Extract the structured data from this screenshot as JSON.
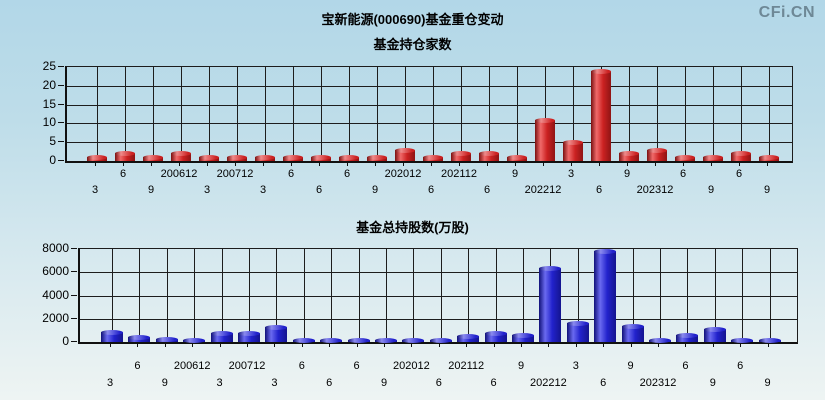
{
  "header": {
    "title": "宝新能源(000690)基金重仓变动",
    "logo": "CFi.CN"
  },
  "colors": {
    "background_top": "#b2d7e8",
    "background_bottom": "#eef4f3",
    "gridline": "#1d1d1d",
    "logo_gray": "#6e8896",
    "red_bar_main": "#cc2222",
    "blue_bar_main": "#2222cc"
  },
  "chart_data": [
    {
      "type": "bar",
      "title": "基金持仓家数",
      "categories": [
        "3",
        "6",
        "9",
        "200612",
        "3",
        "200712",
        "3",
        "6",
        "6",
        "6",
        "9",
        "202012",
        "6",
        "202112",
        "6",
        "9",
        "202212",
        "3",
        "6",
        "9",
        "202312",
        "6",
        "9",
        "6",
        "9"
      ],
      "values": [
        1,
        2,
        1,
        2,
        1,
        1,
        1,
        1,
        1,
        1,
        1,
        3,
        1,
        2,
        2,
        1,
        11,
        5,
        24,
        2,
        3,
        1,
        1,
        2,
        1
      ],
      "xlabel": "",
      "ylabel": "",
      "ylim": [
        0,
        25
      ],
      "yticks": [
        0,
        5,
        10,
        15,
        20,
        25
      ],
      "grid": true,
      "legend": "none",
      "x_labels_alternate_rows": true,
      "bar_colors": {
        "edge": "#7a1010",
        "bright": "#f06a6a",
        "mid": "#cc2222",
        "dark_edge": "#8f1414",
        "cap": "#ef8b8b"
      }
    },
    {
      "type": "bar",
      "title": "基金总持股数(万股)",
      "categories": [
        "3",
        "6",
        "9",
        "200612",
        "3",
        "200712",
        "3",
        "6",
        "6",
        "6",
        "9",
        "202012",
        "6",
        "202112",
        "6",
        "9",
        "202212",
        "3",
        "6",
        "9",
        "202312",
        "6",
        "9",
        "6",
        "9"
      ],
      "values": [
        900,
        450,
        250,
        150,
        800,
        800,
        1300,
        50,
        50,
        80,
        50,
        80,
        150,
        500,
        800,
        600,
        6400,
        1600,
        7800,
        1400,
        80,
        600,
        1100,
        50,
        50
      ],
      "xlabel": "",
      "ylabel": "",
      "ylim": [
        0,
        8000
      ],
      "yticks": [
        0,
        2000,
        4000,
        6000,
        8000
      ],
      "grid": true,
      "legend": "none",
      "x_labels_alternate_rows": true,
      "bar_colors": {
        "edge": "#101078",
        "bright": "#6a6af0",
        "mid": "#2222cc",
        "dark_edge": "#14148f",
        "cap": "#8b8bef"
      }
    }
  ]
}
